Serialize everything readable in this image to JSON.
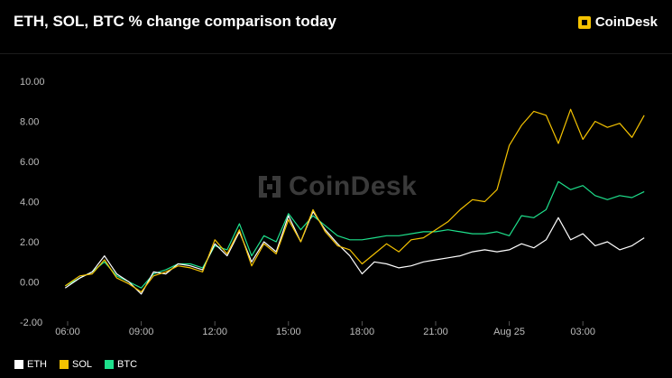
{
  "title": "ETH, SOL, BTC % change comparison today",
  "brand": {
    "name": "CoinDesk",
    "icon": "coindesk-logo-icon",
    "color": "#f4c200"
  },
  "watermark": "CoinDesk",
  "chart_data": {
    "type": "line",
    "xlabel": "",
    "ylabel": "",
    "ylim": [
      -2,
      10
    ],
    "yticks": [
      "10.00",
      "8.00",
      "6.00",
      "4.00",
      "2.00",
      "0.00",
      "-2.00"
    ],
    "xticks": [
      "06:00",
      "09:00",
      "12:00",
      "15:00",
      "18:00",
      "21:00",
      "Aug 25",
      "03:00"
    ],
    "x_tick_hours": [
      6,
      9,
      12,
      15,
      18,
      21,
      24,
      27
    ],
    "legend_position": "bottom-left",
    "grid": false,
    "series": [
      {
        "name": "ETH",
        "color": "#ffffff",
        "x": [
          5.9,
          6.5,
          7.0,
          7.5,
          8.0,
          8.5,
          9.0,
          9.5,
          10.0,
          10.5,
          11.0,
          11.5,
          12.0,
          12.5,
          13.0,
          13.5,
          14.0,
          14.5,
          15.0,
          15.5,
          16.0,
          16.5,
          17.0,
          17.5,
          18.0,
          18.5,
          19.0,
          19.5,
          20.0,
          20.5,
          21.0,
          21.5,
          22.0,
          22.5,
          23.0,
          23.5,
          24.0,
          24.5,
          25.0,
          25.5,
          26.0,
          26.5,
          27.0,
          27.5,
          28.0,
          28.5,
          29.0,
          29.5
        ],
        "y": [
          -0.3,
          0.2,
          0.5,
          1.3,
          0.4,
          0.0,
          -0.6,
          0.5,
          0.4,
          0.9,
          0.8,
          0.6,
          1.9,
          1.3,
          2.5,
          1.0,
          2.0,
          1.5,
          3.3,
          2.0,
          3.5,
          2.6,
          1.9,
          1.3,
          0.4,
          1.0,
          0.9,
          0.7,
          0.8,
          1.0,
          1.1,
          1.2,
          1.3,
          1.5,
          1.6,
          1.5,
          1.6,
          1.9,
          1.7,
          2.1,
          3.2,
          2.1,
          2.4,
          1.8,
          2.0,
          1.6,
          1.8,
          2.2
        ]
      },
      {
        "name": "SOL",
        "color": "#f4c200",
        "x": [
          5.9,
          6.5,
          7.0,
          7.5,
          8.0,
          8.5,
          9.0,
          9.5,
          10.0,
          10.5,
          11.0,
          11.5,
          12.0,
          12.5,
          13.0,
          13.5,
          14.0,
          14.5,
          15.0,
          15.5,
          16.0,
          16.5,
          17.0,
          17.5,
          18.0,
          18.5,
          19.0,
          19.5,
          20.0,
          20.5,
          21.0,
          21.5,
          22.0,
          22.5,
          23.0,
          23.5,
          24.0,
          24.5,
          25.0,
          25.5,
          26.0,
          26.5,
          27.0,
          27.5,
          28.0,
          28.5,
          29.0,
          29.5
        ],
        "y": [
          -0.2,
          0.3,
          0.4,
          1.1,
          0.2,
          -0.1,
          -0.5,
          0.3,
          0.5,
          0.8,
          0.7,
          0.5,
          2.1,
          1.4,
          2.6,
          0.8,
          1.9,
          1.4,
          3.1,
          2.0,
          3.6,
          2.5,
          1.8,
          1.6,
          0.9,
          1.4,
          1.9,
          1.5,
          2.1,
          2.2,
          2.6,
          3.0,
          3.6,
          4.1,
          4.0,
          4.6,
          6.8,
          7.8,
          8.5,
          8.3,
          6.9,
          8.6,
          7.1,
          8.0,
          7.7,
          7.9,
          7.2,
          8.3
        ]
      },
      {
        "name": "BTC",
        "color": "#1ee08c",
        "x": [
          5.9,
          6.5,
          7.0,
          7.5,
          8.0,
          8.5,
          9.0,
          9.5,
          10.0,
          10.5,
          11.0,
          11.5,
          12.0,
          12.5,
          13.0,
          13.5,
          14.0,
          14.5,
          15.0,
          15.5,
          16.0,
          16.5,
          17.0,
          17.5,
          18.0,
          18.5,
          19.0,
          19.5,
          20.0,
          20.5,
          21.0,
          21.5,
          22.0,
          22.5,
          23.0,
          23.5,
          24.0,
          24.5,
          25.0,
          25.5,
          26.0,
          26.5,
          27.0,
          27.5,
          28.0,
          28.5,
          29.0,
          29.5
        ],
        "y": [
          -0.2,
          0.2,
          0.5,
          1.0,
          0.3,
          0.0,
          -0.3,
          0.4,
          0.6,
          0.9,
          0.9,
          0.7,
          1.8,
          1.6,
          2.9,
          1.3,
          2.3,
          2.0,
          3.4,
          2.6,
          3.3,
          2.8,
          2.3,
          2.1,
          2.1,
          2.2,
          2.3,
          2.3,
          2.4,
          2.5,
          2.5,
          2.6,
          2.5,
          2.4,
          2.4,
          2.5,
          2.3,
          3.3,
          3.2,
          3.6,
          5.0,
          4.6,
          4.8,
          4.3,
          4.1,
          4.3,
          4.2,
          4.5
        ]
      }
    ]
  }
}
